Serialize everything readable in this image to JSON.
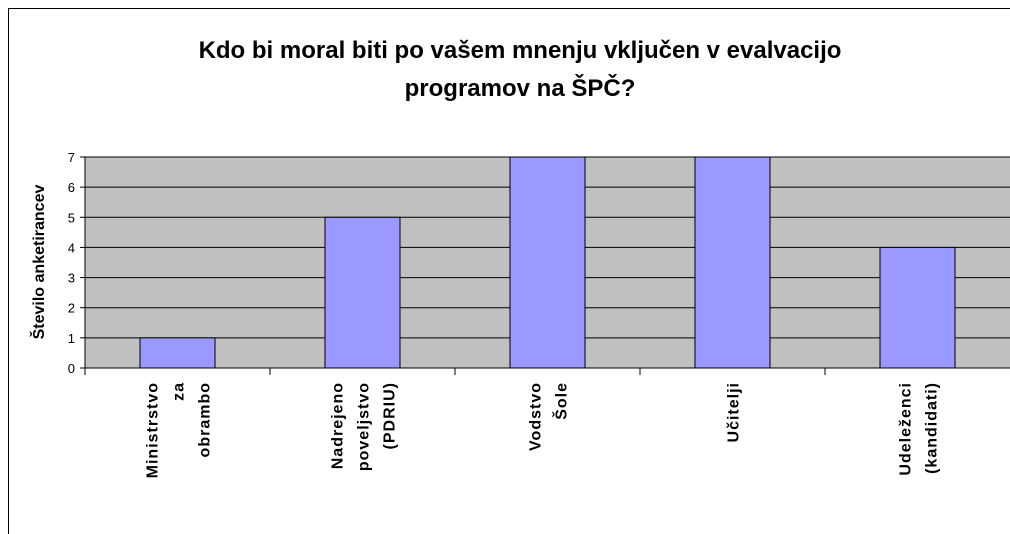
{
  "chart_data": {
    "type": "bar",
    "title": [
      "Kdo bi moral biti po vašem mnenju vključen v evalvacijo",
      "programov na ŠPČ?"
    ],
    "y_label": "Število anketirancev",
    "categories": [
      "Ministrstvo za obrambo",
      "Nadrejeno poveljstvo (PDRIU)",
      "Vodstvo Šole",
      "Učitelji",
      "Udeleženci (kandidati)"
    ],
    "values": [
      1,
      5,
      7,
      7,
      4
    ],
    "color": "#9999ff",
    "plot_background": "#c0c0c0",
    "ylim": [
      0,
      7
    ],
    "yticks": [
      0,
      1,
      2,
      3,
      4,
      5,
      6,
      7
    ],
    "grid": true
  }
}
